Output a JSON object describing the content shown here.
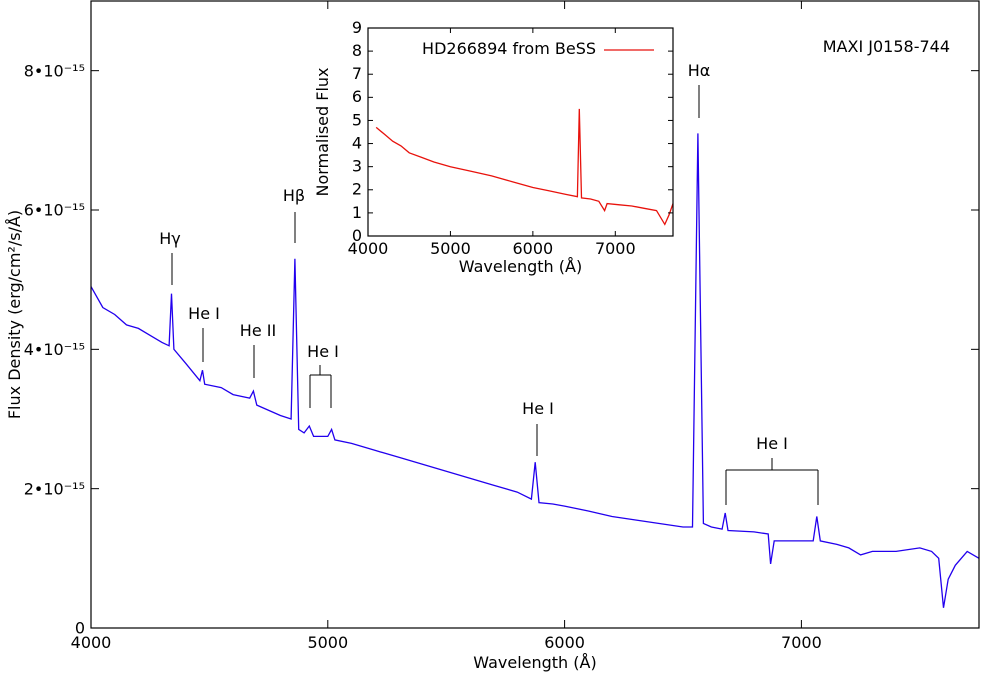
{
  "chart_data": [
    {
      "type": "line",
      "title": "MAXI J0158-744",
      "x_label": "Wavelength (Å)",
      "y_label": "Flux Density (erg/cm²/s/Å)",
      "xlim": [
        4000,
        7750
      ],
      "ylim": [
        0,
        9e-15
      ],
      "xticks": [
        4000,
        5000,
        6000,
        7000
      ],
      "yticks": [
        0,
        {
          "value": 2e-15,
          "label": "2•10⁻¹⁵"
        },
        {
          "value": 4e-15,
          "label": "4•10⁻¹⁵"
        },
        {
          "value": 6e-15,
          "label": "6•10⁻¹⁵"
        },
        {
          "value": 8e-15,
          "label": "8•10⁻¹⁵"
        }
      ],
      "x": [
        4000,
        4050,
        4100,
        4150,
        4200,
        4250,
        4300,
        4330,
        4340,
        4350,
        4400,
        4460,
        4471,
        4480,
        4550,
        4600,
        4670,
        4686,
        4700,
        4800,
        4845,
        4861,
        4877,
        4900,
        4922,
        4940,
        5000,
        5016,
        5030,
        5100,
        5200,
        5300,
        5400,
        5500,
        5600,
        5700,
        5800,
        5860,
        5876,
        5892,
        5950,
        6000,
        6100,
        6200,
        6300,
        6400,
        6500,
        6540,
        6563,
        6586,
        6620,
        6665,
        6678,
        6690,
        6800,
        6860,
        6870,
        6885,
        6950,
        7000,
        7050,
        7065,
        7080,
        7150,
        7200,
        7250,
        7300,
        7400,
        7500,
        7550,
        7580,
        7600,
        7620,
        7650,
        7700,
        7750
      ],
      "series": [
        {
          "color": "#2200ee",
          "values": [
            4.9e-15,
            4.6e-15,
            4.5e-15,
            4.35e-15,
            4.3e-15,
            4.2e-15,
            4.1e-15,
            4.05e-15,
            4.8e-15,
            4e-15,
            3.8e-15,
            3.55e-15,
            3.7e-15,
            3.5e-15,
            3.45e-15,
            3.35e-15,
            3.3e-15,
            3.4e-15,
            3.2e-15,
            3.05e-15,
            3e-15,
            5.3e-15,
            2.85e-15,
            2.8e-15,
            2.9e-15,
            2.75e-15,
            2.75e-15,
            2.85e-15,
            2.7e-15,
            2.65e-15,
            2.55e-15,
            2.45e-15,
            2.35e-15,
            2.25e-15,
            2.15e-15,
            2.05e-15,
            1.95e-15,
            1.85e-15,
            2.38e-15,
            1.8e-15,
            1.78e-15,
            1.75e-15,
            1.68e-15,
            1.6e-15,
            1.55e-15,
            1.5e-15,
            1.45e-15,
            1.45e-15,
            7.1e-15,
            1.5e-15,
            1.45e-15,
            1.42e-15,
            1.65e-15,
            1.4e-15,
            1.38e-15,
            1.35e-15,
            9.2e-16,
            1.25e-15,
            1.25e-15,
            1.25e-15,
            1.25e-15,
            1.6e-15,
            1.25e-15,
            1.2e-15,
            1.15e-15,
            1.05e-15,
            1.1e-15,
            1.1e-15,
            1.15e-15,
            1.1e-15,
            1e-15,
            2.9e-16,
            7e-16,
            9e-16,
            1.1e-15,
            1e-15
          ]
        }
      ],
      "annotations": [
        "Hγ",
        "He I",
        "He II",
        "Hβ",
        "He I",
        "He I",
        "Hα",
        "He I"
      ]
    },
    {
      "type": "line",
      "x_label": "Wavelength (Å)",
      "y_label": "Normalised Flux",
      "xlim": [
        4000,
        7700
      ],
      "ylim": [
        0,
        9
      ],
      "xticks": [
        4000,
        5000,
        6000,
        7000
      ],
      "yticks": [
        0,
        1,
        2,
        3,
        4,
        5,
        6,
        7,
        8,
        9
      ],
      "x": [
        4100,
        4200,
        4300,
        4400,
        4500,
        4650,
        4800,
        5000,
        5250,
        5500,
        5750,
        6000,
        6200,
        6400,
        6540,
        6563,
        6590,
        6700,
        6800,
        6870,
        6900,
        7050,
        7200,
        7350,
        7500,
        7600,
        7650,
        7700
      ],
      "series": [
        {
          "name": "HD266894 from BeSS",
          "color": "#e8120c",
          "values": [
            4.7,
            4.4,
            4.1,
            3.9,
            3.6,
            3.4,
            3.2,
            3.0,
            2.8,
            2.6,
            2.35,
            2.1,
            1.95,
            1.8,
            1.7,
            5.5,
            1.65,
            1.6,
            1.5,
            1.1,
            1.4,
            1.35,
            1.3,
            1.2,
            1.1,
            0.5,
            0.9,
            1.4
          ]
        }
      ],
      "legend": "upper right"
    }
  ]
}
